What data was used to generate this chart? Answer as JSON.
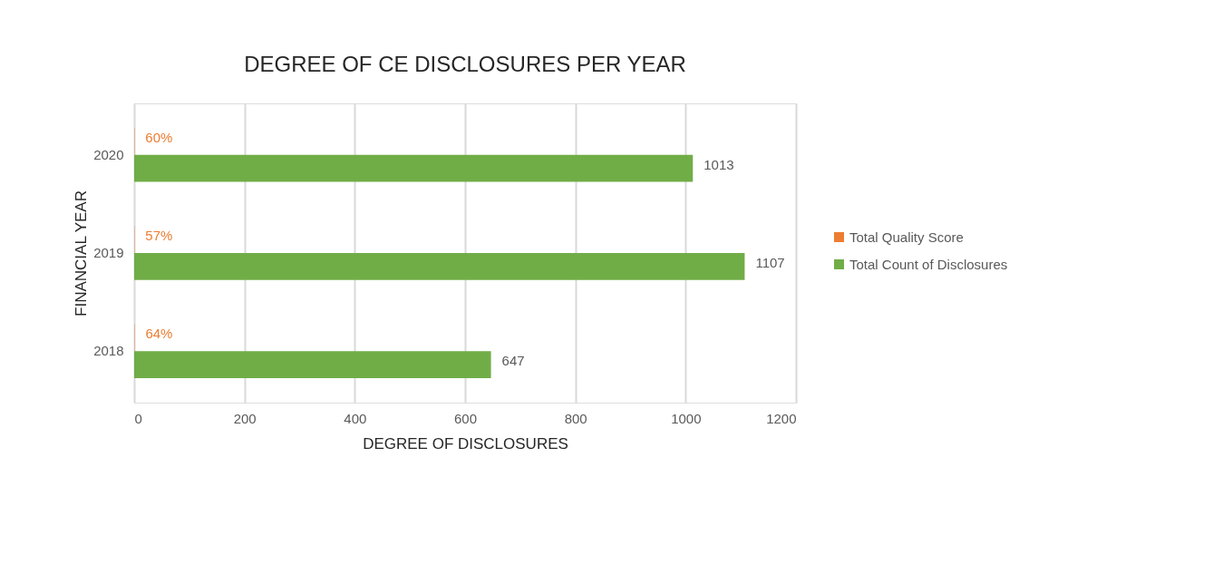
{
  "chart_data": {
    "type": "bar",
    "orientation": "horizontal",
    "title": "DEGREE OF CE DISCLOSURES PER YEAR",
    "xlabel": "DEGREE OF DISCLOSURES",
    "ylabel": "FINANCIAL YEAR",
    "categories": [
      "2020",
      "2019",
      "2018"
    ],
    "series": [
      {
        "name": "Total Quality Score",
        "color": "#ed7d31",
        "values": [
          0.6,
          0.57,
          0.64
        ],
        "value_labels": [
          "60%",
          "57%",
          "64%"
        ]
      },
      {
        "name": "Total Count of Disclosures",
        "color": "#70ad47",
        "values": [
          1013,
          1107,
          647
        ],
        "data_labels": true
      }
    ],
    "xlim": [
      0,
      1200
    ],
    "xticks": [
      0,
      200,
      400,
      600,
      800,
      1000,
      1200
    ],
    "grid": "x",
    "legend": "right"
  }
}
